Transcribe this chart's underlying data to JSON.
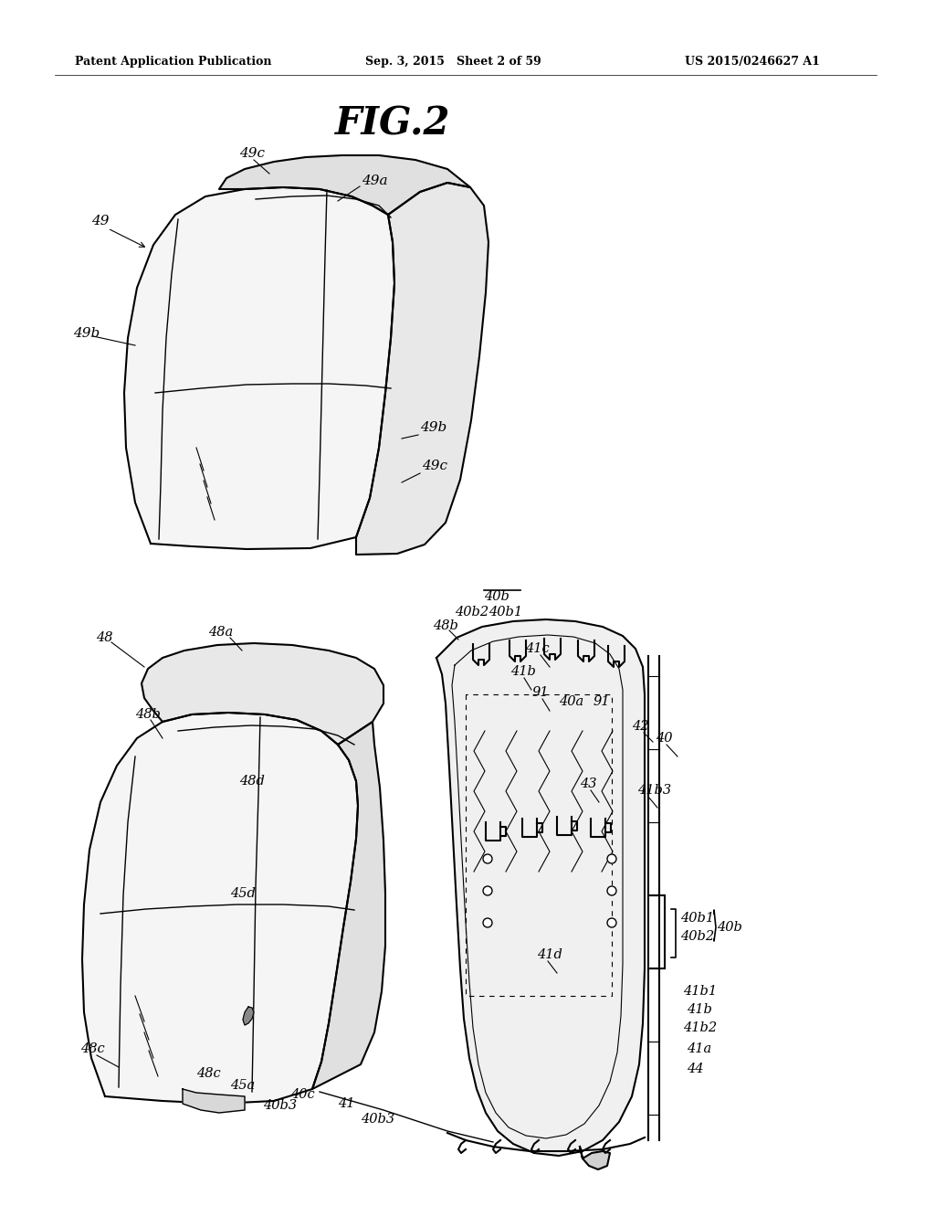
{
  "bg_color": "#ffffff",
  "header_left": "Patent Application Publication",
  "header_center": "Sep. 3, 2015   Sheet 2 of 59",
  "header_right": "US 2015/0246627 A1",
  "fig_title": "FIG.2"
}
